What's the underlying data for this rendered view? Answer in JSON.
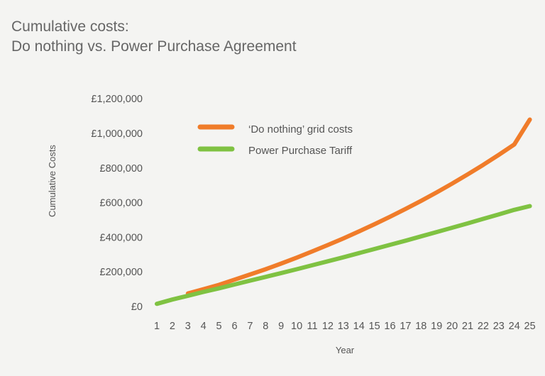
{
  "title_line1": "Cumulative costs:",
  "title_line2": "Do nothing vs. Power Purchase Agreement",
  "chart_data": {
    "type": "line",
    "xlabel": "Year",
    "ylabel": "Cumulative Costs",
    "ylim": [
      0,
      1200000
    ],
    "y_ticks": [
      0,
      200000,
      400000,
      600000,
      800000,
      1000000,
      1200000
    ],
    "y_tick_labels": [
      "£0",
      "£200,000",
      "£400,000",
      "£600,000",
      "£800,000",
      "£1,000,000",
      "£1,200,000"
    ],
    "x": [
      1,
      2,
      3,
      4,
      5,
      6,
      7,
      8,
      9,
      10,
      11,
      12,
      13,
      14,
      15,
      16,
      17,
      18,
      19,
      20,
      21,
      22,
      23,
      24,
      25
    ],
    "grid": false,
    "legend_position": "top-left",
    "series": [
      {
        "name": "‘Do nothing’ grid costs",
        "color": "#f07c2a",
        "x": [
          3,
          4,
          5,
          6,
          7,
          8,
          9,
          10,
          11,
          12,
          13,
          14,
          15,
          16,
          17,
          18,
          19,
          20,
          21,
          22,
          23,
          24,
          25
        ],
        "values": [
          75000,
          100000,
          125000,
          155000,
          185000,
          215000,
          248000,
          282000,
          318000,
          355000,
          393000,
          433000,
          475000,
          518000,
          563000,
          610000,
          659000,
          710000,
          763000,
          818000,
          876000,
          936000,
          1080000
        ]
      },
      {
        "name": "Power Purchase Tariff",
        "color": "#7fc242",
        "x": [
          1,
          2,
          3,
          4,
          5,
          6,
          7,
          8,
          9,
          10,
          11,
          12,
          13,
          14,
          15,
          16,
          17,
          18,
          19,
          20,
          21,
          22,
          23,
          24,
          25
        ],
        "values": [
          15000,
          40000,
          62000,
          84000,
          105000,
          127000,
          149000,
          171000,
          193000,
          215000,
          238000,
          261000,
          284000,
          308000,
          332000,
          356000,
          380000,
          405000,
          430000,
          455000,
          480000,
          506000,
          532000,
          558000,
          580000
        ]
      }
    ]
  }
}
